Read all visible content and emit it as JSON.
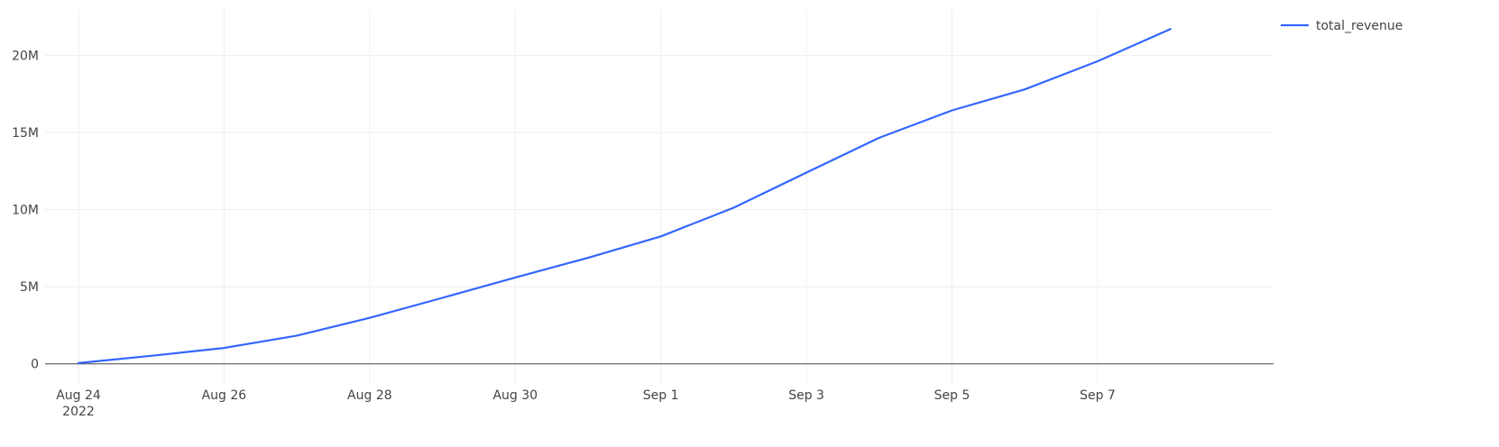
{
  "chart_data": {
    "type": "line",
    "title": "",
    "xlabel": "",
    "ylabel": "",
    "x_axis": {
      "type": "date",
      "range": [
        "2022-08-23T13:00",
        "2022-09-09T10:00"
      ],
      "ticks": [
        {
          "date": "2022-08-24",
          "label": "Aug 24",
          "sublabel": "2022"
        },
        {
          "date": "2022-08-26",
          "label": "Aug 26"
        },
        {
          "date": "2022-08-28",
          "label": "Aug 28"
        },
        {
          "date": "2022-08-30",
          "label": "Aug 30"
        },
        {
          "date": "2022-09-01",
          "label": "Sep 1"
        },
        {
          "date": "2022-09-03",
          "label": "Sep 3"
        },
        {
          "date": "2022-09-05",
          "label": "Sep 5"
        },
        {
          "date": "2022-09-07",
          "label": "Sep 7"
        }
      ]
    },
    "y_axis": {
      "range": [
        -1300000,
        23000000
      ],
      "ticks": [
        {
          "value": 0,
          "label": "0"
        },
        {
          "value": 5000000,
          "label": "5M"
        },
        {
          "value": 10000000,
          "label": "10M"
        },
        {
          "value": 15000000,
          "label": "15M"
        },
        {
          "value": 20000000,
          "label": "20M"
        }
      ]
    },
    "grid": true,
    "legend": {
      "position": "top-right"
    },
    "colors": {
      "series": "#3366ff",
      "grid": "#eeeeee",
      "zeroline": "#444444",
      "text": "#444444"
    },
    "series": [
      {
        "name": "total_revenue",
        "x": [
          "2022-08-24",
          "2022-08-25",
          "2022-08-26",
          "2022-08-27",
          "2022-08-28",
          "2022-08-29",
          "2022-08-30",
          "2022-08-31",
          "2022-09-01",
          "2022-09-02",
          "2022-09-03",
          "2022-09-04",
          "2022-09-05",
          "2022-09-06",
          "2022-09-07",
          "2022-09-08"
        ],
        "y": [
          50000,
          520000,
          1030000,
          1830000,
          2980000,
          4280000,
          5600000,
          6870000,
          8260000,
          10120000,
          12400000,
          14650000,
          16430000,
          17790000,
          19610000,
          21700000
        ]
      }
    ]
  }
}
